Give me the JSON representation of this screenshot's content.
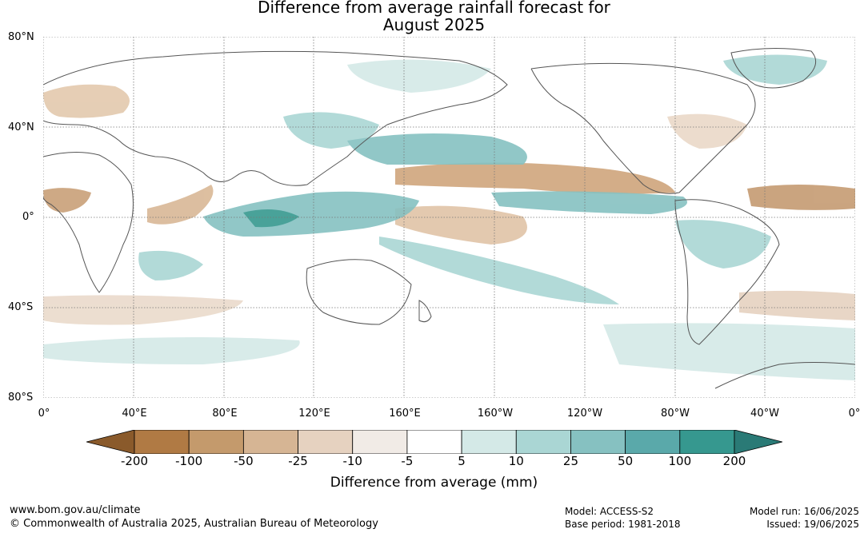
{
  "title": {
    "line1": "Difference from average rainfall forecast for",
    "line2": "August 2025"
  },
  "axes": {
    "lat_labels": [
      "80°N",
      "40°N",
      "0°",
      "40°S",
      "80°S"
    ],
    "lon_labels": [
      "0°",
      "40°E",
      "80°E",
      "120°E",
      "160°E",
      "160°W",
      "120°W",
      "80°W",
      "40°W",
      "0°"
    ]
  },
  "legend": {
    "title": "Difference from average (mm)",
    "ticks": [
      "-200",
      "-100",
      "-50",
      "-25",
      "-10",
      "-5",
      "5",
      "10",
      "25",
      "50",
      "100",
      "200"
    ],
    "colors": [
      "#8a5a2b",
      "#b07a44",
      "#c49a6c",
      "#d6b594",
      "#e6d2c0",
      "#f1ebe6",
      "#ffffff",
      "#d4e9e7",
      "#aad6d4",
      "#86c1c1",
      "#5aa9aa",
      "#36988f",
      "#2a7a76"
    ]
  },
  "footer": {
    "website": "www.bom.gov.au/climate",
    "copyright": "© Commonwealth of Australia 2025, Australian Bureau of Meteorology",
    "model": "Model: ACCESS-S2",
    "base_period": "Base period: 1981-2018",
    "model_run": "Model run: 16/06/2025",
    "issued": "Issued: 19/06/2025"
  }
}
